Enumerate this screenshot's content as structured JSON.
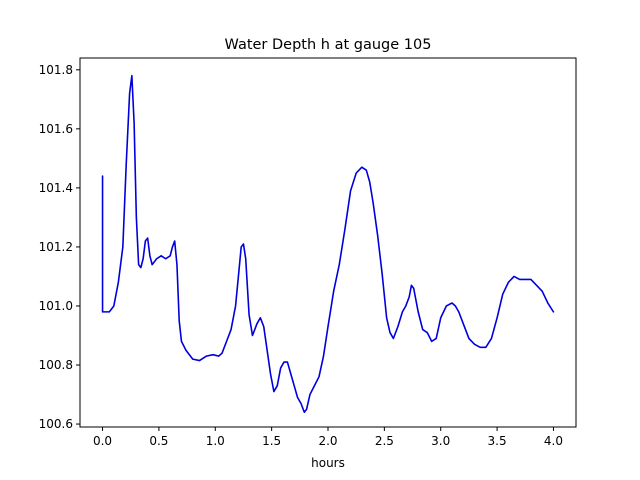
{
  "chart_data": {
    "type": "line",
    "title": "Water Depth h at gauge 105",
    "xlabel": "hours",
    "ylabel": "",
    "xlim": [
      -0.2,
      4.2
    ],
    "ylim": [
      100.59,
      101.84
    ],
    "grid": false,
    "x_ticks": [
      0.0,
      0.5,
      1.0,
      1.5,
      2.0,
      2.5,
      3.0,
      3.5,
      4.0
    ],
    "x_tick_labels": [
      "0.0",
      "0.5",
      "1.0",
      "1.5",
      "2.0",
      "2.5",
      "3.0",
      "3.5",
      "4.0"
    ],
    "y_ticks": [
      100.6,
      100.8,
      101.0,
      101.2,
      101.4,
      101.6,
      101.8
    ],
    "y_tick_labels": [
      "100.6",
      "100.8",
      "101.0",
      "101.2",
      "101.4",
      "101.6",
      "101.8"
    ],
    "line_color": "#0000dd",
    "series": [
      {
        "x": [
          0.0,
          0.0,
          0.02,
          0.06,
          0.1,
          0.14,
          0.18,
          0.21,
          0.24,
          0.26,
          0.28,
          0.3,
          0.32,
          0.34,
          0.36,
          0.38,
          0.4,
          0.42,
          0.44,
          0.46,
          0.48,
          0.52,
          0.56,
          0.6,
          0.62,
          0.64,
          0.66,
          0.68,
          0.7,
          0.74,
          0.8,
          0.86,
          0.92,
          0.98,
          1.03,
          1.06,
          1.1,
          1.14,
          1.18,
          1.21,
          1.23,
          1.25,
          1.27,
          1.3,
          1.33,
          1.37,
          1.4,
          1.43,
          1.46,
          1.49,
          1.52,
          1.55,
          1.58,
          1.61,
          1.64,
          1.67,
          1.7,
          1.73,
          1.76,
          1.79,
          1.81,
          1.84,
          1.88,
          1.92,
          1.96,
          2.0,
          2.05,
          2.1,
          2.15,
          2.2,
          2.25,
          2.3,
          2.34,
          2.37,
          2.4,
          2.44,
          2.48,
          2.52,
          2.55,
          2.58,
          2.62,
          2.66,
          2.69,
          2.72,
          2.74,
          2.76,
          2.8,
          2.84,
          2.88,
          2.92,
          2.96,
          3.0,
          3.05,
          3.1,
          3.13,
          3.16,
          3.2,
          3.25,
          3.3,
          3.35,
          3.4,
          3.45,
          3.5,
          3.55,
          3.6,
          3.65,
          3.7,
          3.75,
          3.8,
          3.85,
          3.9,
          3.95,
          4.0
        ],
        "y": [
          101.44,
          100.98,
          100.98,
          100.98,
          101.0,
          101.08,
          101.2,
          101.48,
          101.72,
          101.78,
          101.62,
          101.3,
          101.14,
          101.13,
          101.16,
          101.22,
          101.23,
          101.17,
          101.14,
          101.15,
          101.16,
          101.17,
          101.16,
          101.17,
          101.2,
          101.22,
          101.14,
          100.95,
          100.88,
          100.85,
          100.82,
          100.815,
          100.83,
          100.835,
          100.83,
          100.84,
          100.88,
          100.92,
          101.0,
          101.12,
          101.2,
          101.21,
          101.16,
          100.97,
          100.9,
          100.94,
          100.96,
          100.93,
          100.85,
          100.77,
          100.71,
          100.73,
          100.79,
          100.81,
          100.81,
          100.77,
          100.73,
          100.69,
          100.67,
          100.64,
          100.65,
          100.7,
          100.73,
          100.76,
          100.83,
          100.93,
          101.05,
          101.14,
          101.26,
          101.39,
          101.45,
          101.47,
          101.46,
          101.42,
          101.35,
          101.24,
          101.11,
          100.96,
          100.91,
          100.89,
          100.93,
          100.98,
          101.0,
          101.03,
          101.07,
          101.06,
          100.98,
          100.92,
          100.91,
          100.88,
          100.89,
          100.96,
          101.0,
          101.01,
          101.0,
          100.98,
          100.94,
          100.89,
          100.87,
          100.86,
          100.86,
          100.89,
          100.96,
          101.04,
          101.08,
          101.1,
          101.09,
          101.09,
          101.09,
          101.07,
          101.05,
          101.01,
          100.98
        ]
      }
    ]
  }
}
